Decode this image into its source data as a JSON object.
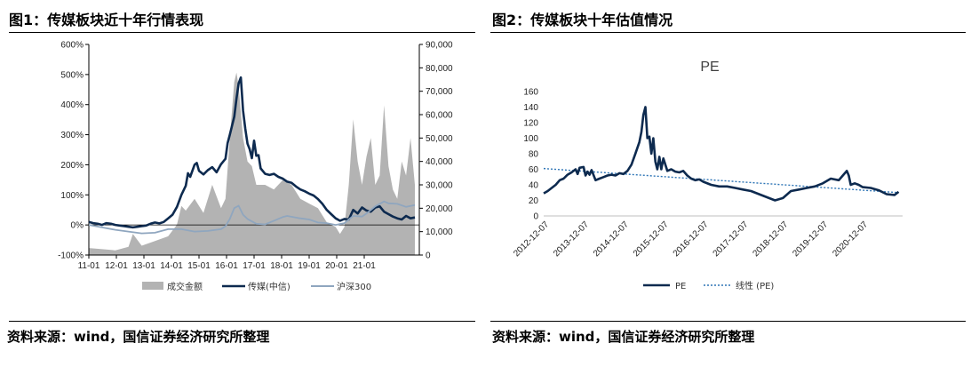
{
  "figure1": {
    "title": "图1：传媒板块近十年行情表现",
    "source": "资料来源：wind，国信证券经济研究所整理",
    "chart_data": {
      "type": "bar+line",
      "x_ticks": [
        "11-01",
        "12-01",
        "13-01",
        "14-01",
        "15-01",
        "16-01",
        "17-01",
        "18-01",
        "19-01",
        "20-01",
        "21-01"
      ],
      "left_axis": {
        "ticks": [
          "600%",
          "500%",
          "400%",
          "300%",
          "200%",
          "100%",
          "0%",
          "-100%"
        ],
        "range": [
          -100,
          600
        ]
      },
      "right_axis": {
        "ticks": [
          "90,000",
          "80,000",
          "70,000",
          "60,000",
          "50,000",
          "40,000",
          "30,000",
          "20,000",
          "10,000",
          "0"
        ],
        "range": [
          0,
          90000
        ]
      },
      "legend": [
        "成交金额",
        "传媒(中信)",
        "沪深300"
      ],
      "series": [
        {
          "name": "传媒(中信)",
          "axis": "left",
          "color": "#0d2a4f",
          "points": [
            [
              0,
              10
            ],
            [
              2,
              6
            ],
            [
              4,
              4
            ],
            [
              6,
              0
            ],
            [
              8,
              6
            ],
            [
              10,
              4
            ],
            [
              12,
              0
            ],
            [
              14,
              -2
            ],
            [
              16,
              -4
            ],
            [
              18,
              -6
            ],
            [
              20,
              -8
            ],
            [
              22,
              -6
            ],
            [
              24,
              -4
            ],
            [
              26,
              -2
            ],
            [
              28,
              4
            ],
            [
              30,
              8
            ],
            [
              32,
              5
            ],
            [
              34,
              10
            ],
            [
              36,
              22
            ],
            [
              38,
              34
            ],
            [
              40,
              60
            ],
            [
              42,
              100
            ],
            [
              44,
              130
            ],
            [
              45,
              172
            ],
            [
              46,
              160
            ],
            [
              48,
              200
            ],
            [
              49,
              206
            ],
            [
              50,
              180
            ],
            [
              52,
              168
            ],
            [
              54,
              182
            ],
            [
              56,
              192
            ],
            [
              58,
              175
            ],
            [
              60,
              202
            ],
            [
              62,
              220
            ],
            [
              63,
              272
            ],
            [
              64,
              300
            ],
            [
              66,
              360
            ],
            [
              67,
              420
            ],
            [
              68,
              470
            ],
            [
              69,
              490
            ],
            [
              70,
              380
            ],
            [
              71,
              320
            ],
            [
              72,
              270
            ],
            [
              73,
              252
            ],
            [
              74,
              222
            ],
            [
              75,
              280
            ],
            [
              76,
              230
            ],
            [
              77,
              232
            ],
            [
              78,
              188
            ],
            [
              80,
              170
            ],
            [
              82,
              166
            ],
            [
              84,
              170
            ],
            [
              86,
              160
            ],
            [
              88,
              154
            ],
            [
              90,
              144
            ],
            [
              92,
              140
            ],
            [
              94,
              128
            ],
            [
              96,
              118
            ],
            [
              98,
              112
            ],
            [
              100,
              104
            ],
            [
              102,
              98
            ],
            [
              104,
              86
            ],
            [
              106,
              70
            ],
            [
              108,
              50
            ],
            [
              110,
              36
            ],
            [
              112,
              22
            ],
            [
              114,
              14
            ],
            [
              116,
              20
            ],
            [
              118,
              18
            ],
            [
              120,
              50
            ],
            [
              122,
              38
            ],
            [
              124,
              58
            ],
            [
              126,
              48
            ],
            [
              128,
              44
            ],
            [
              130,
              58
            ],
            [
              132,
              62
            ],
            [
              134,
              44
            ],
            [
              136,
              36
            ],
            [
              138,
              28
            ],
            [
              140,
              22
            ],
            [
              142,
              18
            ],
            [
              144,
              30
            ],
            [
              146,
              22
            ],
            [
              148,
              25
            ]
          ]
        },
        {
          "name": "沪深300",
          "axis": "left",
          "color": "#8fa6bf",
          "points": [
            [
              0,
              0
            ],
            [
              6,
              -8
            ],
            [
              12,
              -16
            ],
            [
              18,
              -22
            ],
            [
              24,
              -28
            ],
            [
              30,
              -26
            ],
            [
              36,
              -14
            ],
            [
              42,
              -14
            ],
            [
              48,
              -22
            ],
            [
              54,
              -20
            ],
            [
              60,
              -14
            ],
            [
              62,
              -4
            ],
            [
              64,
              20
            ],
            [
              66,
              56
            ],
            [
              68,
              64
            ],
            [
              70,
              34
            ],
            [
              72,
              20
            ],
            [
              76,
              4
            ],
            [
              80,
              2
            ],
            [
              84,
              14
            ],
            [
              88,
              26
            ],
            [
              90,
              30
            ],
            [
              96,
              22
            ],
            [
              100,
              18
            ],
            [
              104,
              8
            ],
            [
              108,
              6
            ],
            [
              112,
              0
            ],
            [
              116,
              6
            ],
            [
              120,
              30
            ],
            [
              124,
              28
            ],
            [
              126,
              38
            ],
            [
              130,
              62
            ],
            [
              134,
              78
            ],
            [
              136,
              72
            ],
            [
              140,
              70
            ],
            [
              144,
              60
            ],
            [
              148,
              66
            ]
          ]
        },
        {
          "name": "成交金额",
          "axis": "right",
          "type": "area",
          "color": "#b3b3b3",
          "points": [
            [
              0,
              3000
            ],
            [
              6,
              2500
            ],
            [
              12,
              2000
            ],
            [
              18,
              3500
            ],
            [
              20,
              9000
            ],
            [
              24,
              4000
            ],
            [
              30,
              6000
            ],
            [
              36,
              8000
            ],
            [
              40,
              13000
            ],
            [
              42,
              21000
            ],
            [
              44,
              19000
            ],
            [
              48,
              24000
            ],
            [
              52,
              18000
            ],
            [
              56,
              30000
            ],
            [
              60,
              20000
            ],
            [
              62,
              24000
            ],
            [
              64,
              50000
            ],
            [
              66,
              74000
            ],
            [
              67,
              78000
            ],
            [
              68,
              72000
            ],
            [
              70,
              50000
            ],
            [
              72,
              40000
            ],
            [
              74,
              38000
            ],
            [
              76,
              30000
            ],
            [
              80,
              30000
            ],
            [
              84,
              28000
            ],
            [
              88,
              32000
            ],
            [
              92,
              30000
            ],
            [
              96,
              24000
            ],
            [
              100,
              22000
            ],
            [
              104,
              20000
            ],
            [
              108,
              14000
            ],
            [
              112,
              12000
            ],
            [
              114,
              9000
            ],
            [
              116,
              12000
            ],
            [
              118,
              30000
            ],
            [
              120,
              58000
            ],
            [
              122,
              40000
            ],
            [
              124,
              30000
            ],
            [
              126,
              42000
            ],
            [
              128,
              50000
            ],
            [
              130,
              30000
            ],
            [
              132,
              34000
            ],
            [
              134,
              64000
            ],
            [
              136,
              38000
            ],
            [
              138,
              28000
            ],
            [
              140,
              24000
            ],
            [
              142,
              40000
            ],
            [
              144,
              34000
            ],
            [
              146,
              50000
            ],
            [
              148,
              30000
            ]
          ]
        }
      ]
    }
  },
  "figure2": {
    "title": "图2：传媒板块十年估值情况",
    "source": "资料来源：wind，国信证券经济研究所整理",
    "chart_data": {
      "type": "line",
      "title": "PE",
      "x_ticks": [
        "2012-12-07",
        "2013-12-07",
        "2014-12-07",
        "2015-12-07",
        "2016-12-07",
        "2017-12-07",
        "2018-12-07",
        "2019-12-07",
        "2020-12-07"
      ],
      "y_ticks": [
        "160",
        "140",
        "120",
        "100",
        "80",
        "60",
        "40",
        "20",
        "0"
      ],
      "ylim": [
        0,
        160
      ],
      "legend": [
        "PE",
        "线性 (PE)"
      ],
      "series": [
        {
          "name": "PE",
          "color": "#0d2a4f",
          "points": [
            [
              0,
              29
            ],
            [
              0.1,
              32
            ],
            [
              0.2,
              36
            ],
            [
              0.3,
              40
            ],
            [
              0.4,
              46
            ],
            [
              0.5,
              48
            ],
            [
              0.6,
              53
            ],
            [
              0.7,
              56
            ],
            [
              0.8,
              60
            ],
            [
              0.85,
              54
            ],
            [
              0.9,
              62
            ],
            [
              1.0,
              63
            ],
            [
              1.05,
              52
            ],
            [
              1.1,
              57
            ],
            [
              1.15,
              53
            ],
            [
              1.2,
              59
            ],
            [
              1.3,
              46
            ],
            [
              1.4,
              48
            ],
            [
              1.5,
              50
            ],
            [
              1.6,
              52
            ],
            [
              1.7,
              53
            ],
            [
              1.8,
              52
            ],
            [
              1.9,
              55
            ],
            [
              2.0,
              54
            ],
            [
              2.1,
              58
            ],
            [
              2.2,
              66
            ],
            [
              2.3,
              80
            ],
            [
              2.4,
              95
            ],
            [
              2.45,
              108
            ],
            [
              2.5,
              130
            ],
            [
              2.55,
              140
            ],
            [
              2.6,
              100
            ],
            [
              2.65,
              102
            ],
            [
              2.7,
              80
            ],
            [
              2.75,
              100
            ],
            [
              2.8,
              70
            ],
            [
              2.85,
              60
            ],
            [
              2.9,
              76
            ],
            [
              2.95,
              60
            ],
            [
              3.0,
              74
            ],
            [
              3.1,
              58
            ],
            [
              3.2,
              60
            ],
            [
              3.3,
              57
            ],
            [
              3.4,
              56
            ],
            [
              3.5,
              58
            ],
            [
              3.6,
              52
            ],
            [
              3.7,
              48
            ],
            [
              3.8,
              46
            ],
            [
              3.9,
              47
            ],
            [
              4.0,
              44
            ],
            [
              4.2,
              40
            ],
            [
              4.4,
              38
            ],
            [
              4.6,
              38
            ],
            [
              4.8,
              36
            ],
            [
              5.0,
              34
            ],
            [
              5.2,
              32
            ],
            [
              5.4,
              28
            ],
            [
              5.6,
              24
            ],
            [
              5.8,
              20
            ],
            [
              6.0,
              23
            ],
            [
              6.2,
              32
            ],
            [
              6.4,
              34
            ],
            [
              6.6,
              36
            ],
            [
              6.8,
              38
            ],
            [
              7.0,
              42
            ],
            [
              7.2,
              48
            ],
            [
              7.4,
              46
            ],
            [
              7.5,
              52
            ],
            [
              7.6,
              58
            ],
            [
              7.65,
              52
            ],
            [
              7.7,
              40
            ],
            [
              7.8,
              42
            ],
            [
              7.9,
              40
            ],
            [
              8.0,
              37
            ],
            [
              8.2,
              36
            ],
            [
              8.4,
              33
            ],
            [
              8.6,
              28
            ],
            [
              8.8,
              27
            ],
            [
              8.9,
              31
            ]
          ]
        },
        {
          "name": "线性 (PE)",
          "color": "#2e75b6",
          "dashed": true,
          "points": [
            [
              0,
              61
            ],
            [
              8.9,
              30
            ]
          ]
        }
      ]
    }
  }
}
